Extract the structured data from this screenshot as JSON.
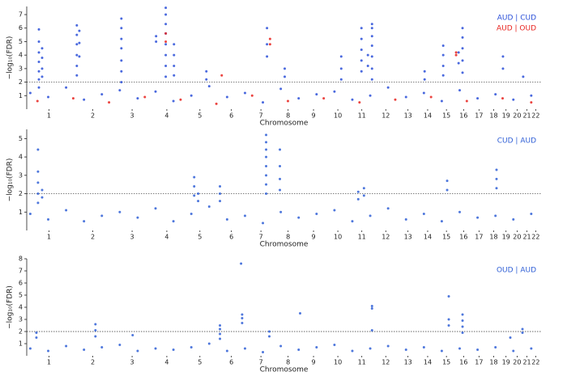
{
  "chart_data": [
    {
      "type": "scatter",
      "ylabel": "−log₁₀(FDR)",
      "xlabel": "Chromosome",
      "legend": "upper right",
      "xlim": [
        0,
        2875
      ],
      "ylim": [
        0,
        7.6
      ],
      "yticks": [
        1,
        2,
        3,
        4,
        5,
        6,
        7
      ],
      "hline": 2,
      "xticks": [
        {
          "value": 124,
          "label": "1"
        },
        {
          "value": 369,
          "label": "2"
        },
        {
          "value": 589,
          "label": "3"
        },
        {
          "value": 783,
          "label": "4"
        },
        {
          "value": 968,
          "label": "5"
        },
        {
          "value": 1144,
          "label": "6"
        },
        {
          "value": 1309,
          "label": "7"
        },
        {
          "value": 1461,
          "label": "8"
        },
        {
          "value": 1603,
          "label": "9"
        },
        {
          "value": 1739,
          "label": "10"
        },
        {
          "value": 1873,
          "label": "11"
        },
        {
          "value": 2007,
          "label": "12"
        },
        {
          "value": 2131,
          "label": "13"
        },
        {
          "value": 2241,
          "label": "14"
        },
        {
          "value": 2346,
          "label": "15"
        },
        {
          "value": 2442,
          "label": "16"
        },
        {
          "value": 2528,
          "label": "17"
        },
        {
          "value": 2610,
          "label": "18"
        },
        {
          "value": 2679,
          "label": "19"
        },
        {
          "value": 2741,
          "label": "20"
        },
        {
          "value": 2796,
          "label": "21"
        },
        {
          "value": 2845,
          "label": "22"
        }
      ],
      "series": [
        {
          "name": "AUD | CUD",
          "color": "#2a4fd8",
          "x": [
            68,
            68,
            68,
            68,
            68,
            68,
            68,
            86,
            86,
            86,
            86,
            280,
            280,
            280,
            280,
            280,
            280,
            294,
            294,
            294,
            529,
            529,
            529,
            529,
            529,
            529,
            529,
            723,
            723,
            777,
            777,
            777,
            777,
            777,
            777,
            777,
            777,
            823,
            823,
            823,
            823,
            1004,
            1004,
            1343,
            1343,
            1343,
            1442,
            1442,
            1758,
            1758,
            1758,
            1871,
            1871,
            1871,
            1871,
            1871,
            1907,
            1907,
            1930,
            1930,
            1930,
            1930,
            1930,
            1930,
            1930,
            2224,
            2224,
            2328,
            2328,
            2328,
            2328,
            2414,
            2414,
            2436,
            2436,
            2436,
            2436,
            2436,
            2662,
            2662,
            2775,
            20,
            120,
            220,
            320,
            420,
            520,
            620,
            720,
            820,
            920,
            1020,
            1120,
            1220,
            1320,
            1420,
            1520,
            1620,
            1720,
            1820,
            1920,
            2020,
            2120,
            2220,
            2320,
            2420,
            2520,
            2620,
            2720,
            2820
          ],
          "values": [
            5.9,
            5.0,
            4.2,
            3.5,
            2.8,
            2.2,
            1.6,
            4.5,
            3.8,
            3.0,
            2.4,
            6.2,
            5.5,
            4.8,
            4.0,
            3.2,
            2.5,
            5.8,
            4.9,
            3.9,
            6.7,
            6.0,
            5.2,
            4.5,
            3.6,
            2.8,
            2.0,
            5.4,
            5.0,
            7.5,
            7.0,
            6.3,
            5.6,
            4.8,
            4.0,
            3.2,
            2.4,
            4.8,
            4.0,
            3.2,
            2.5,
            2.8,
            2.2,
            6.0,
            4.8,
            3.9,
            3.0,
            2.4,
            3.9,
            3.0,
            2.2,
            6.0,
            5.2,
            4.4,
            3.6,
            2.8,
            4.0,
            3.2,
            6.3,
            6.0,
            5.4,
            4.7,
            3.9,
            3.0,
            2.2,
            2.8,
            2.2,
            4.7,
            4.0,
            3.2,
            2.5,
            4.2,
            3.4,
            6.0,
            5.3,
            4.5,
            3.6,
            2.7,
            3.9,
            3.0,
            2.4,
            1.2,
            0.9,
            1.6,
            0.7,
            1.1,
            1.4,
            0.8,
            1.3,
            0.6,
            1.0,
            1.7,
            0.9,
            1.2,
            0.5,
            1.5,
            0.8,
            1.1,
            1.3,
            0.7,
            1.0,
            1.6,
            0.9,
            1.2,
            0.6,
            1.4,
            0.8,
            1.1,
            0.7,
            1.0
          ]
        },
        {
          "name": "AUD | OUD",
          "color": "#e8231f",
          "x": [
            777,
            777,
            1360,
            1360,
            2400,
            2400,
            1090,
            60,
            260,
            460,
            660,
            860,
            1060,
            1260,
            1460,
            1660,
            1860,
            2060,
            2260,
            2460,
            2660,
            2820
          ],
          "values": [
            5.6,
            5.0,
            5.2,
            4.8,
            4.2,
            4.0,
            2.5,
            0.6,
            0.8,
            0.5,
            0.9,
            0.7,
            0.4,
            1.0,
            0.6,
            0.8,
            0.5,
            0.7,
            0.9,
            0.6,
            0.8,
            0.5
          ]
        }
      ]
    },
    {
      "type": "scatter",
      "ylabel": "−log₁₀(FDR)",
      "xlabel": "Chromosome",
      "legend": "upper right",
      "xlim": [
        0,
        2875
      ],
      "ylim": [
        0,
        5.5
      ],
      "yticks": [
        1,
        2,
        3,
        4,
        5
      ],
      "hline": 2,
      "xticks": [
        {
          "value": 124,
          "label": "1"
        },
        {
          "value": 369,
          "label": "2"
        },
        {
          "value": 589,
          "label": "3"
        },
        {
          "value": 783,
          "label": "4"
        },
        {
          "value": 968,
          "label": "5"
        },
        {
          "value": 1144,
          "label": "6"
        },
        {
          "value": 1309,
          "label": "7"
        },
        {
          "value": 1461,
          "label": "8"
        },
        {
          "value": 1603,
          "label": "9"
        },
        {
          "value": 1739,
          "label": "10"
        },
        {
          "value": 1873,
          "label": "11"
        },
        {
          "value": 2007,
          "label": "12"
        },
        {
          "value": 2131,
          "label": "13"
        },
        {
          "value": 2241,
          "label": "14"
        },
        {
          "value": 2346,
          "label": "15"
        },
        {
          "value": 2442,
          "label": "16"
        },
        {
          "value": 2528,
          "label": "17"
        },
        {
          "value": 2610,
          "label": "18"
        },
        {
          "value": 2679,
          "label": "19"
        },
        {
          "value": 2741,
          "label": "20"
        },
        {
          "value": 2796,
          "label": "21"
        },
        {
          "value": 2845,
          "label": "22"
        }
      ],
      "series": [
        {
          "name": "CUD | AUD",
          "color": "#2f5fd6",
          "x": [
            63,
            63,
            63,
            63,
            63,
            86,
            86,
            936,
            936,
            936,
            958,
            958,
            1080,
            1080,
            1080,
            1338,
            1338,
            1338,
            1338,
            1338,
            1338,
            1338,
            1338,
            1415,
            1415,
            1415,
            1415,
            1853,
            1853,
            1885,
            1885,
            2350,
            2350,
            2626,
            2626,
            2626,
            20,
            120,
            220,
            320,
            420,
            520,
            620,
            720,
            820,
            920,
            1020,
            1120,
            1220,
            1320,
            1420,
            1520,
            1620,
            1720,
            1820,
            1920,
            2020,
            2120,
            2220,
            2320,
            2420,
            2520,
            2620,
            2720,
            2820
          ],
          "values": [
            4.4,
            3.2,
            2.6,
            2.0,
            1.5,
            2.2,
            1.8,
            2.9,
            2.4,
            1.9,
            2.0,
            1.6,
            2.4,
            2.0,
            1.6,
            5.2,
            4.8,
            4.4,
            4.0,
            3.5,
            3.0,
            2.5,
            2.0,
            4.4,
            3.5,
            2.8,
            2.2,
            2.1,
            1.7,
            2.3,
            1.9,
            2.7,
            2.2,
            3.3,
            2.8,
            2.3,
            0.9,
            0.6,
            1.1,
            0.5,
            0.8,
            1.0,
            0.7,
            1.2,
            0.5,
            0.9,
            1.3,
            0.6,
            0.8,
            0.4,
            1.0,
            0.7,
            0.9,
            1.1,
            0.5,
            0.8,
            1.2,
            0.6,
            0.9,
            0.5,
            1.0,
            0.7,
            0.8,
            0.6,
            0.9
          ]
        }
      ]
    },
    {
      "type": "scatter",
      "ylabel": "−log₁₀(FDR)",
      "xlabel": "Chromosome",
      "legend": "upper right",
      "xlim": [
        0,
        2875
      ],
      "ylim": [
        0,
        8
      ],
      "yticks": [
        1,
        2,
        3,
        4,
        5,
        6,
        7,
        8
      ],
      "hline": 2,
      "xticks": [
        {
          "value": 124,
          "label": "1"
        },
        {
          "value": 369,
          "label": "2"
        },
        {
          "value": 589,
          "label": "3"
        },
        {
          "value": 783,
          "label": "4"
        },
        {
          "value": 968,
          "label": "5"
        },
        {
          "value": 1144,
          "label": "6"
        },
        {
          "value": 1309,
          "label": "7"
        },
        {
          "value": 1461,
          "label": "8"
        },
        {
          "value": 1603,
          "label": "9"
        },
        {
          "value": 1739,
          "label": "10"
        },
        {
          "value": 1873,
          "label": "11"
        },
        {
          "value": 2007,
          "label": "12"
        },
        {
          "value": 2131,
          "label": "13"
        },
        {
          "value": 2241,
          "label": "14"
        },
        {
          "value": 2346,
          "label": "15"
        },
        {
          "value": 2442,
          "label": "16"
        },
        {
          "value": 2528,
          "label": "17"
        },
        {
          "value": 2610,
          "label": "18"
        },
        {
          "value": 2679,
          "label": "19"
        },
        {
          "value": 2741,
          "label": "20"
        },
        {
          "value": 2796,
          "label": "21"
        },
        {
          "value": 2845,
          "label": "22"
        }
      ],
      "series": [
        {
          "name": "OUD | AUD",
          "color": "#2f5fd6",
          "x": [
            54,
            54,
            384,
            384,
            384,
            592,
            1080,
            1080,
            1080,
            1080,
            1198,
            1204,
            1204,
            1204,
            1356,
            1356,
            1528,
            1930,
            1930,
            1930,
            2359,
            2359,
            2359,
            2436,
            2436,
            2436,
            2436,
            2703,
            2771,
            2771,
            20,
            120,
            220,
            320,
            420,
            520,
            620,
            720,
            820,
            920,
            1020,
            1120,
            1220,
            1320,
            1420,
            1520,
            1620,
            1720,
            1820,
            1920,
            2020,
            2120,
            2220,
            2320,
            2420,
            2520,
            2620,
            2720,
            2820
          ],
          "values": [
            1.9,
            1.5,
            2.6,
            2.1,
            1.6,
            1.7,
            2.5,
            2.2,
            1.8,
            1.4,
            7.6,
            3.4,
            3.1,
            2.7,
            2.0,
            1.6,
            3.5,
            4.1,
            3.9,
            2.1,
            4.9,
            3.0,
            2.5,
            3.4,
            2.9,
            2.4,
            1.9,
            1.5,
            2.2,
            1.9,
            0.6,
            0.4,
            0.8,
            0.5,
            0.7,
            0.9,
            0.4,
            0.6,
            0.5,
            0.7,
            1.0,
            0.4,
            0.6,
            0.3,
            0.8,
            0.5,
            0.7,
            0.9,
            0.4,
            0.6,
            0.8,
            0.5,
            0.7,
            0.4,
            0.6,
            0.5,
            0.7,
            0.4,
            0.6
          ]
        }
      ]
    }
  ]
}
